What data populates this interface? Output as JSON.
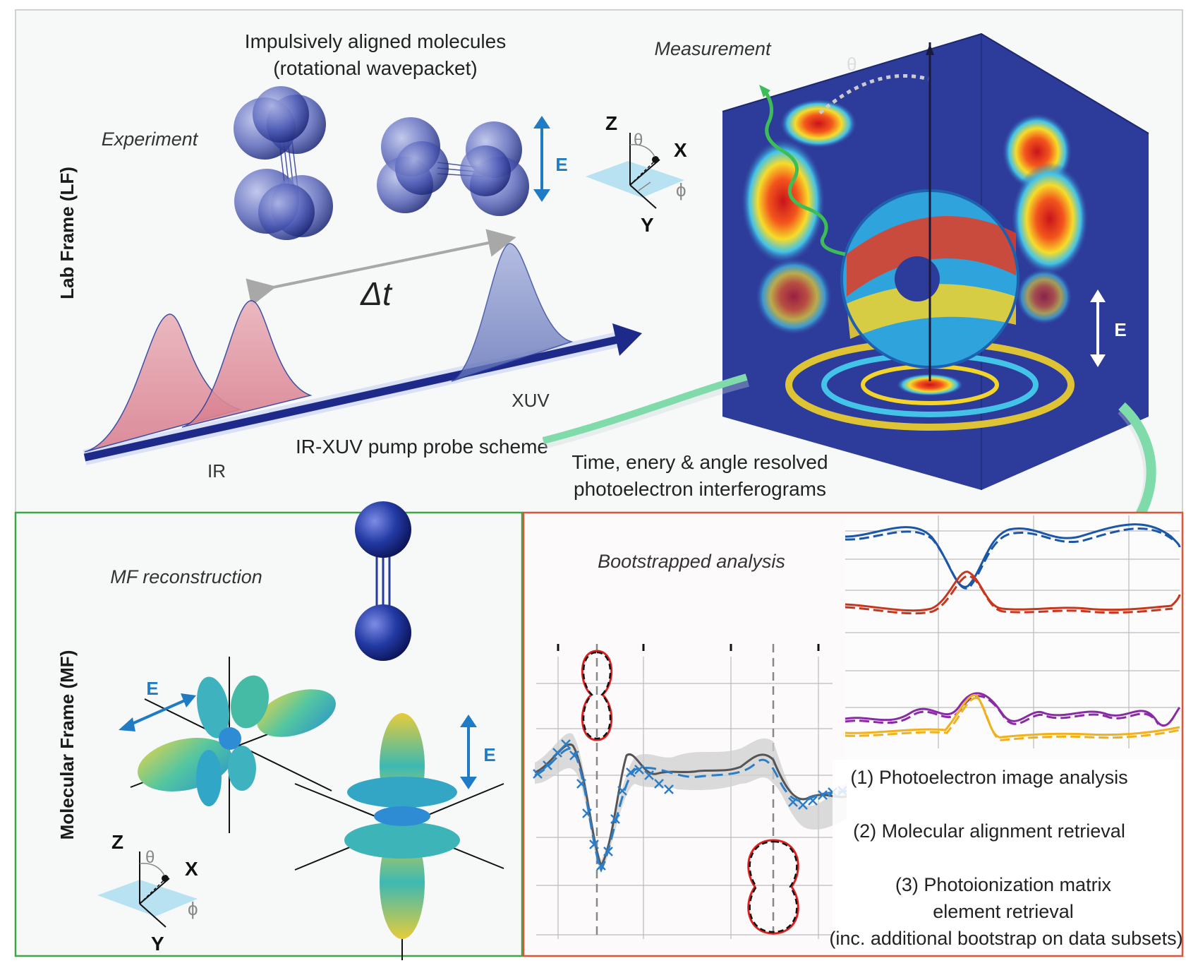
{
  "lab_frame": {
    "side_label": "Lab Frame (LF)",
    "experiment_label": "Experiment",
    "molecules_title_line1": "Impulsively aligned molecules",
    "molecules_title_line2": "(rotational wavepacket)",
    "e_label": "E",
    "axis": {
      "z": "Z",
      "x": "X",
      "y": "Y",
      "theta": "θ",
      "phi": "ϕ"
    },
    "delta_t": "Δt",
    "pulse_ir_label": "IR",
    "pulse_xuv_label": "XUV",
    "scheme_label": "IR-XUV pump probe scheme",
    "measurement_label": "Measurement",
    "measurement_theta": "θ",
    "measurement_e_label": "E",
    "interferogram_line1": "Time, enery & angle resolved",
    "interferogram_line2": "photoelectron interferograms",
    "colors": {
      "ir": "#e8a9b3",
      "xuv": "#7d8cc4",
      "cube": "#2d3b9a",
      "arrow": "#7fdcaa",
      "e": "#1f7cc4"
    }
  },
  "molecular_frame": {
    "side_label": "Molecular Frame (MF)",
    "reconstruction_label": "MF reconstruction",
    "e_label_left": "E",
    "e_label_right": "E",
    "axis": {
      "z": "Z",
      "x": "X",
      "y": "Y",
      "theta": "θ",
      "phi": "ϕ"
    },
    "border_color": "#3aa845"
  },
  "analysis": {
    "title": "Bootstrapped analysis",
    "step1": "(1) Photoelectron image analysis",
    "step2": "(2) Molecular alignment retrieval",
    "step3_line1": "(3) Photoionization matrix",
    "step3_line2": "element retrieval",
    "step3_line3": "(inc. additional bootstrap on data subsets)",
    "border_color": "#e0553a",
    "series_colors": {
      "blue": "#1a57a8",
      "red": "#c8361d",
      "purple": "#8a2aa6",
      "yellow": "#f0b11c",
      "gray": "#555555",
      "cross": "#2b7dc8"
    }
  }
}
